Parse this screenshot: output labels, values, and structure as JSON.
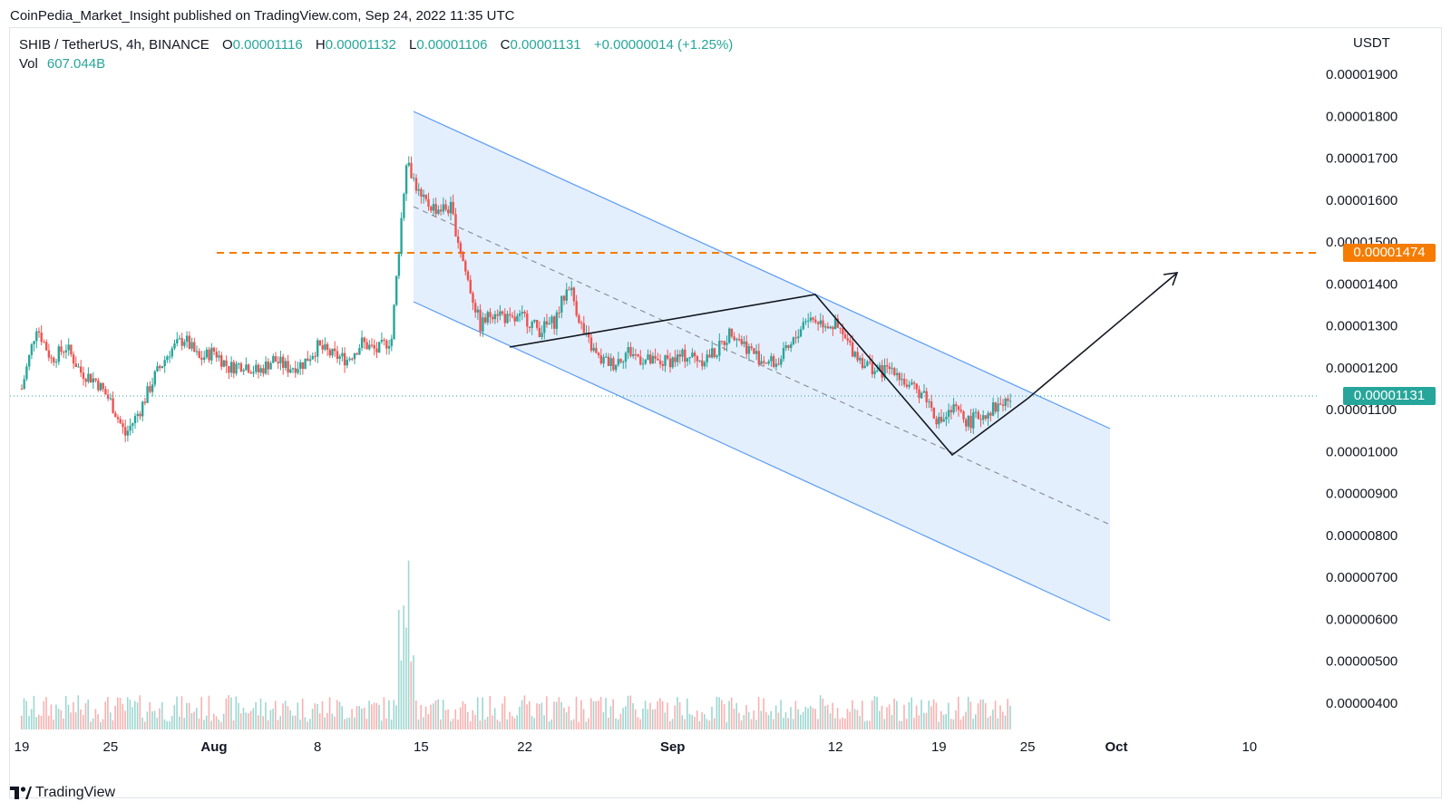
{
  "header": {
    "published": "CoinPedia_Market_Insight published on TradingView.com, Sep 24, 2022 11:35 UTC"
  },
  "legend": {
    "symbol": "SHIB / TetherUS, 4h, BINANCE",
    "open_label": "O",
    "open": "0.00001116",
    "high_label": "H",
    "high": "0.00001132",
    "low_label": "L",
    "low": "0.00001106",
    "close_label": "C",
    "close": "0.00001131",
    "change": "+0.00000014 (+1.25%)",
    "vol_label": "Vol",
    "vol": "607.044B"
  },
  "price_axis": {
    "unit": "USDT",
    "labels": [
      "0.00001900",
      "0.00001800",
      "0.00001700",
      "0.00001600",
      "0.00001500",
      "0.00001400",
      "0.00001300",
      "0.00001200",
      "0.00001100",
      "0.00001000",
      "0.00000900",
      "0.00000800",
      "0.00000700",
      "0.00000600",
      "0.00000500",
      "0.00000400"
    ],
    "resistance_tag": "0.00001474",
    "last_price_tag": "0.00001131"
  },
  "time_axis": {
    "labels": [
      "19",
      "25",
      "Aug",
      "8",
      "15",
      "22",
      "Sep",
      "12",
      "19",
      "25",
      "Oct",
      "10"
    ]
  },
  "footer": {
    "brand": "TradingView"
  },
  "colors": {
    "up": "#26a69a",
    "down": "#ef5350",
    "channel_fill": "#dbe9fd",
    "channel_line": "#5b9cf5",
    "resistance": "#f57c00",
    "last_price": "#26a69a"
  },
  "chart_data": {
    "type": "candlestick",
    "title": "SHIB / TetherUS, 4h, BINANCE",
    "ylabel": "USDT",
    "ylim": [
      3.5e-06,
      1.95e-05
    ],
    "x_range": [
      "2022-07-19",
      "2022-10-12"
    ],
    "resistance_level": 1.474e-05,
    "last_price": 1.131e-05,
    "price_path": [
      [
        "2022-07-19",
        1.15e-05
      ],
      [
        "2022-07-20",
        1.3e-05
      ],
      [
        "2022-07-21",
        1.22e-05
      ],
      [
        "2022-07-22",
        1.25e-05
      ],
      [
        "2022-07-23",
        1.19e-05
      ],
      [
        "2022-07-24",
        1.17e-05
      ],
      [
        "2022-07-25",
        1.12e-05
      ],
      [
        "2022-07-26",
        1.04e-05
      ],
      [
        "2022-07-27",
        1.1e-05
      ],
      [
        "2022-07-28",
        1.18e-05
      ],
      [
        "2022-07-29",
        1.24e-05
      ],
      [
        "2022-07-30",
        1.27e-05
      ],
      [
        "2022-07-31",
        1.22e-05
      ],
      [
        "2022-08-01",
        1.24e-05
      ],
      [
        "2022-08-02",
        1.2e-05
      ],
      [
        "2022-08-03",
        1.21e-05
      ],
      [
        "2022-08-04",
        1.19e-05
      ],
      [
        "2022-08-05",
        1.22e-05
      ],
      [
        "2022-08-06",
        1.2e-05
      ],
      [
        "2022-08-07",
        1.21e-05
      ],
      [
        "2022-08-08",
        1.25e-05
      ],
      [
        "2022-08-09",
        1.23e-05
      ],
      [
        "2022-08-10",
        1.22e-05
      ],
      [
        "2022-08-11",
        1.26e-05
      ],
      [
        "2022-08-12",
        1.24e-05
      ],
      [
        "2022-08-13",
        1.27e-05
      ],
      [
        "2022-08-14",
        1.7e-05
      ],
      [
        "2022-08-15",
        1.6e-05
      ],
      [
        "2022-08-16",
        1.58e-05
      ],
      [
        "2022-08-17",
        1.58e-05
      ],
      [
        "2022-08-18",
        1.43e-05
      ],
      [
        "2022-08-19",
        1.3e-05
      ],
      [
        "2022-08-20",
        1.34e-05
      ],
      [
        "2022-08-21",
        1.31e-05
      ],
      [
        "2022-08-22",
        1.32e-05
      ],
      [
        "2022-08-23",
        1.29e-05
      ],
      [
        "2022-08-24",
        1.31e-05
      ],
      [
        "2022-08-25",
        1.4e-05
      ],
      [
        "2022-08-26",
        1.28e-05
      ],
      [
        "2022-08-27",
        1.22e-05
      ],
      [
        "2022-08-28",
        1.21e-05
      ],
      [
        "2022-08-29",
        1.24e-05
      ],
      [
        "2022-08-30",
        1.22e-05
      ],
      [
        "2022-08-31",
        1.21e-05
      ],
      [
        "2022-09-01",
        1.22e-05
      ],
      [
        "2022-09-02",
        1.23e-05
      ],
      [
        "2022-09-03",
        1.22e-05
      ],
      [
        "2022-09-04",
        1.24e-05
      ],
      [
        "2022-09-05",
        1.29e-05
      ],
      [
        "2022-09-06",
        1.25e-05
      ],
      [
        "2022-09-07",
        1.22e-05
      ],
      [
        "2022-09-08",
        1.21e-05
      ],
      [
        "2022-09-09",
        1.25e-05
      ],
      [
        "2022-09-10",
        1.32e-05
      ],
      [
        "2022-09-11",
        1.31e-05
      ],
      [
        "2022-09-12",
        1.3e-05
      ],
      [
        "2022-09-13",
        1.25e-05
      ],
      [
        "2022-09-14",
        1.21e-05
      ],
      [
        "2022-09-15",
        1.19e-05
      ],
      [
        "2022-09-16",
        1.2e-05
      ],
      [
        "2022-09-17",
        1.15e-05
      ],
      [
        "2022-09-18",
        1.14e-05
      ],
      [
        "2022-09-19",
        1.07e-05
      ],
      [
        "2022-09-20",
        1.1e-05
      ],
      [
        "2022-09-21",
        1.07e-05
      ],
      [
        "2022-09-22",
        1.09e-05
      ],
      [
        "2022-09-23",
        1.11e-05
      ],
      [
        "2022-09-24",
        1.13e-05
      ]
    ]
  }
}
